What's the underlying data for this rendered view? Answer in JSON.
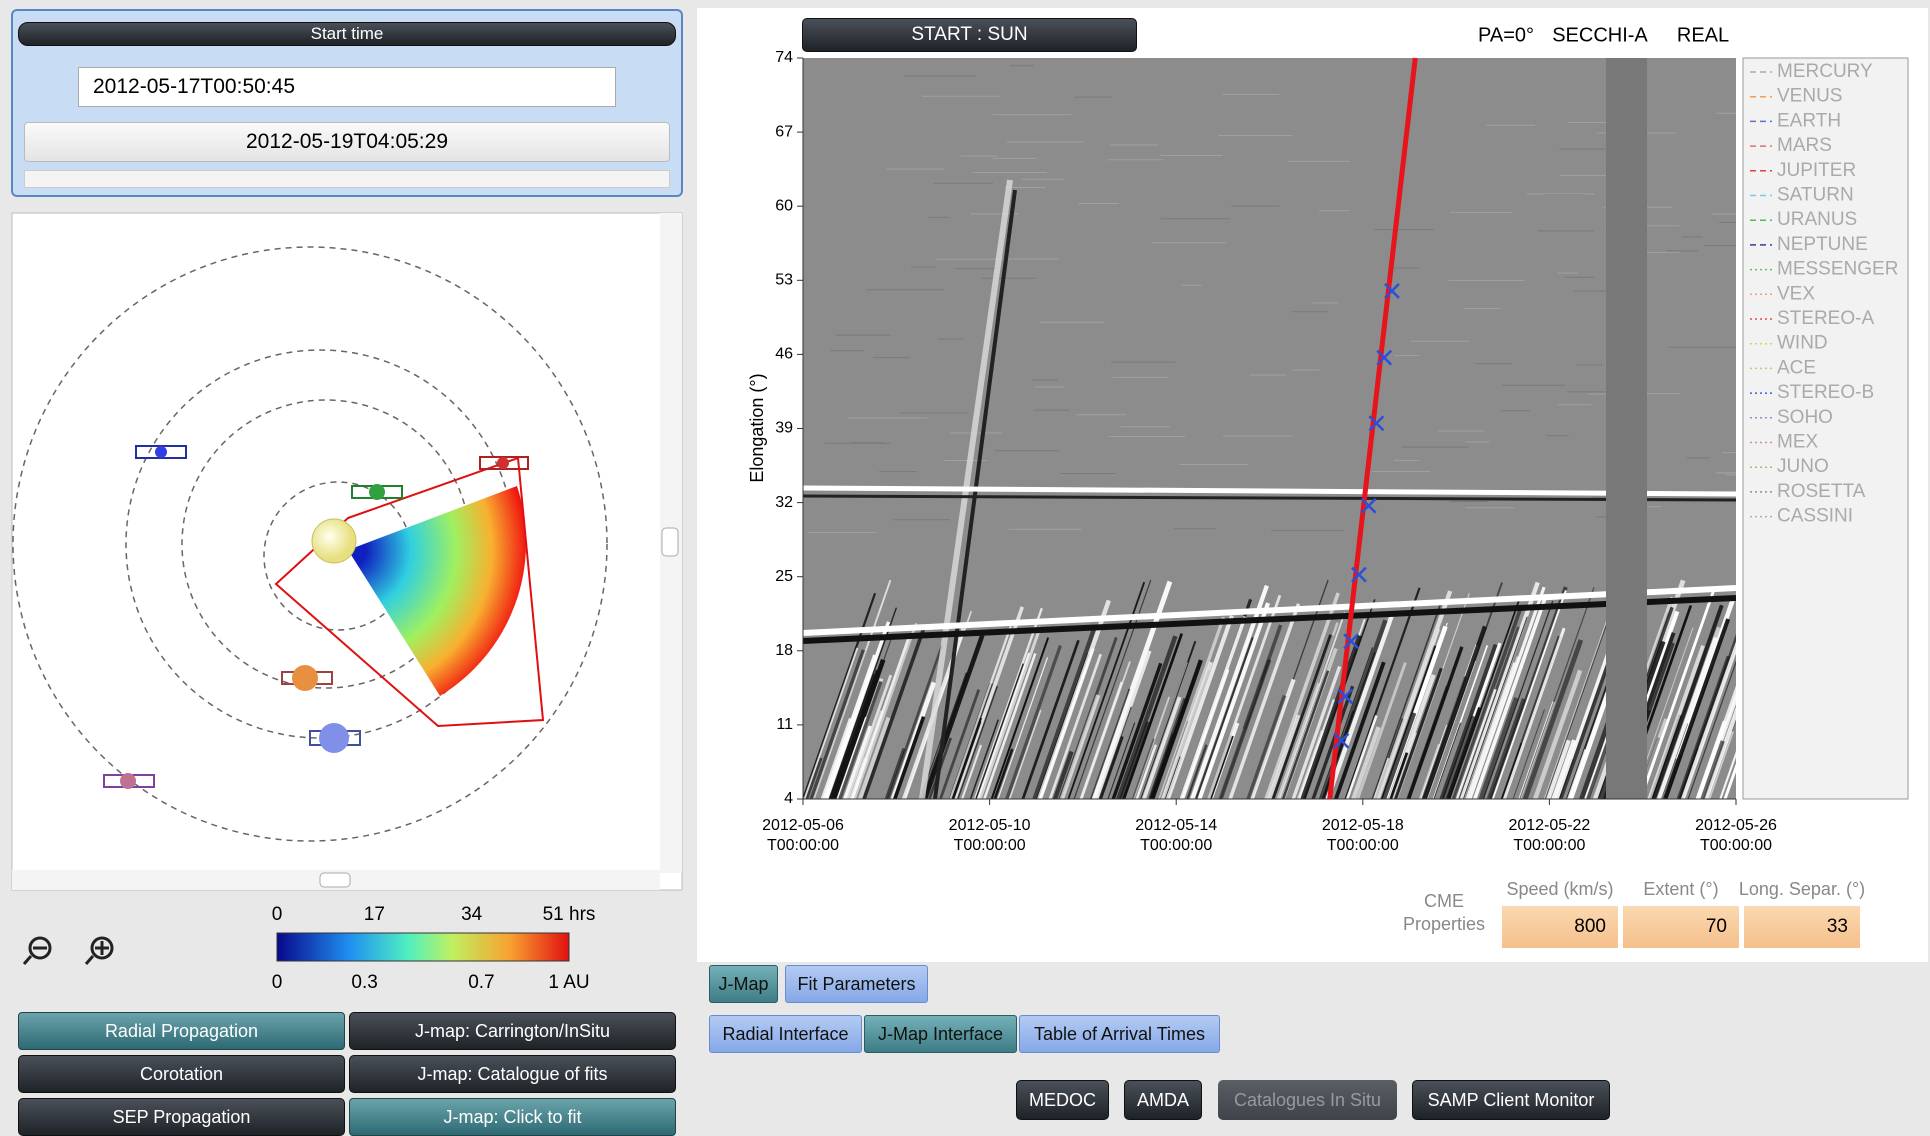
{
  "left_panel": {
    "start_time_label": "Start time",
    "start_time": "2012-05-17T00:50:45",
    "end_time": "2012-05-19T04:05:29",
    "colorbar": {
      "time_lim": [
        0,
        51
      ],
      "time_ticks": [
        0,
        17,
        34,
        {
          "value": 51,
          "label": "51 hrs"
        }
      ],
      "distance_lim": [
        0,
        1
      ],
      "distance_ticks": [
        0,
        0.3,
        0.7,
        {
          "value": 1,
          "label": "1 AU"
        }
      ]
    },
    "buttons": [
      "Radial Propagation",
      "J-map: Carrington/InSitu",
      "Corotation",
      "J-map: Catalogue of fits",
      "SEP Propagation",
      "J-map: Click to fit"
    ]
  },
  "jmap": {
    "type": "line",
    "button": "START : SUN",
    "pa": "PA=0°",
    "instrument": "SECCHI-A",
    "mode": "REAL",
    "y_label": "Elongation (°)",
    "ylim": [
      4,
      74
    ],
    "yticks": [
      4,
      11,
      18,
      25,
      32,
      39,
      46,
      53,
      60,
      67,
      74
    ],
    "xlim": [
      "2012-05-06T00:00:00",
      "2012-05-26T00:00:00"
    ],
    "xticks": [
      {
        "value": "2012-05-06T00:00:00",
        "label": [
          "2012-05-06",
          "T00:00:00"
        ]
      },
      {
        "value": "2012-05-10T00:00:00",
        "label": [
          "2012-05-10",
          "T00:00:00"
        ]
      },
      {
        "value": "2012-05-14T00:00:00",
        "label": [
          "2012-05-14",
          "T00:00:00"
        ]
      },
      {
        "value": "2012-05-18T00:00:00",
        "label": [
          "2012-05-18",
          "T00:00:00"
        ]
      },
      {
        "value": "2012-05-22T00:00:00",
        "label": [
          "2012-05-22",
          "T00:00:00"
        ]
      },
      {
        "value": "2012-05-26T00:00:00",
        "label": [
          "2012-05-26",
          "T00:00:00"
        ]
      }
    ],
    "fit_points": {
      "color": "#2b4fd8",
      "x": [
        "2012-05-18T15:00:00",
        "2012-05-18T11:00:00",
        "2012-05-18T07:00:00",
        "2012-05-18T03:00:00",
        "2012-05-17T22:00:00",
        "2012-05-17T18:00:00",
        "2012-05-17T15:00:00",
        "2012-05-17T13:00:00"
      ],
      "y": [
        52,
        45.7,
        39.5,
        31.7,
        25.2,
        18.9,
        13.7,
        9.5
      ]
    },
    "fit_line": {
      "color": "#e8141b",
      "x": [
        "2012-05-17T07:00:00",
        "2012-05-19T03:00:00"
      ],
      "y": [
        4,
        74
      ]
    },
    "legend": [
      {
        "name": "MERCURY",
        "color": "#aaaaaa",
        "dash": "6,4"
      },
      {
        "name": "VENUS",
        "color": "#f0a050",
        "dash": "6,4"
      },
      {
        "name": "EARTH",
        "color": "#6070d0",
        "dash": "6,4"
      },
      {
        "name": "MARS",
        "color": "#e07070",
        "dash": "6,4"
      },
      {
        "name": "JUPITER",
        "color": "#e04040",
        "dash": "6,4"
      },
      {
        "name": "SATURN",
        "color": "#70d0e0",
        "dash": "6,4"
      },
      {
        "name": "URANUS",
        "color": "#50c050",
        "dash": "6,4"
      },
      {
        "name": "NEPTUNE",
        "color": "#3040a0",
        "dash": "6,4"
      },
      {
        "name": "MESSENGER",
        "color": "#60c060",
        "dash": "2,3"
      },
      {
        "name": "VEX",
        "color": "#f0a080",
        "dash": "2,3"
      },
      {
        "name": "STEREO-A",
        "color": "#e05050",
        "dash": "2,3"
      },
      {
        "name": "WIND",
        "color": "#e0d060",
        "dash": "2,3"
      },
      {
        "name": "ACE",
        "color": "#c0d060",
        "dash": "2,3"
      },
      {
        "name": "STEREO-B",
        "color": "#4060e0",
        "dash": "2,3"
      },
      {
        "name": "SOHO",
        "color": "#9090c0",
        "dash": "2,3"
      },
      {
        "name": "MEX",
        "color": "#d09090",
        "dash": "2,3"
      },
      {
        "name": "JUNO",
        "color": "#c0b070",
        "dash": "2,3"
      },
      {
        "name": "ROSETTA",
        "color": "#909090",
        "dash": "2,3"
      },
      {
        "name": "CASSINI",
        "color": "#b0b0b0",
        "dash": "2,3"
      }
    ]
  },
  "cme_properties": {
    "label": [
      "CME",
      "Properties"
    ],
    "columns": [
      {
        "header": "Speed (km/s)",
        "value": 800
      },
      {
        "header": "Extent (°)",
        "value": 70
      },
      {
        "header": "Long. Separ. (°)",
        "value": 33
      }
    ]
  },
  "tabs": {
    "row1": [
      "J-Map",
      "Fit Parameters"
    ],
    "row2": [
      "Radial Interface",
      "J-Map Interface",
      "Table of Arrival Times"
    ]
  },
  "buttons": [
    "MEDOC",
    "AMDA",
    "Catalogues In Situ",
    "SAMP Client Monitor"
  ]
}
